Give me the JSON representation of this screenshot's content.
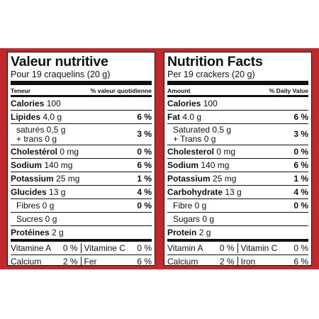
{
  "french": {
    "title": "Valeur nutritive",
    "serving": "Pour 19 craquelins (20 g)",
    "head_left": "Teneur",
    "head_right": "% valeur quotidienne",
    "rows": [
      {
        "name": "Calories",
        "amount": "100",
        "dv": ""
      },
      {
        "name": "Lipides",
        "amount": "4,0 g",
        "dv": "6 %"
      },
      {
        "name": "saturés 0,5 g",
        "name2": "+ trans 0 g",
        "dv": "3 %"
      },
      {
        "name": "Cholestérol",
        "amount": "0 mg",
        "dv": "0 %"
      },
      {
        "name": "Sodium",
        "amount": "140 mg",
        "dv": "6 %"
      },
      {
        "name": "Potassium",
        "amount": "25 mg",
        "dv": "1 %"
      },
      {
        "name": "Glucides",
        "amount": "13 g",
        "dv": "4 %"
      },
      {
        "name": "Fibres 0 g",
        "dv": "0 %"
      },
      {
        "name": "Sucres 0 g",
        "dv": ""
      },
      {
        "name": "Protéines",
        "amount": "2 g",
        "dv": ""
      }
    ],
    "vitamins": [
      {
        "a_name": "Vitamine A",
        "a_dv": "0 %",
        "b_name": "Vitamine C",
        "b_dv": "0 %"
      },
      {
        "a_name": "Calcium",
        "a_dv": "2 %",
        "b_name": "Fer",
        "b_dv": "6 %"
      }
    ]
  },
  "english": {
    "title": "Nutrition Facts",
    "serving": "Per 19 crackers (20 g)",
    "head_left": "Amount",
    "head_right": "% Daily Value",
    "rows": [
      {
        "name": "Calories",
        "amount": "100",
        "dv": ""
      },
      {
        "name": "Fat",
        "amount": "4.0 g",
        "dv": "6 %"
      },
      {
        "name": "Saturated 0.5 g",
        "name2": "+ Trans 0 g",
        "dv": "3 %"
      },
      {
        "name": "Cholesterol",
        "amount": "0 mg",
        "dv": "0 %"
      },
      {
        "name": "Sodium",
        "amount": "140 mg",
        "dv": "6 %"
      },
      {
        "name": "Potassium",
        "amount": "25 mg",
        "dv": "1 %"
      },
      {
        "name": "Carbohydrate",
        "amount": "13 g",
        "dv": "4 %"
      },
      {
        "name": "Fibre 0 g",
        "dv": "0 %"
      },
      {
        "name": "Sugars 0 g",
        "dv": ""
      },
      {
        "name": "Protein",
        "amount": "2 g",
        "dv": ""
      }
    ],
    "vitamins": [
      {
        "a_name": "Vitamin A",
        "a_dv": "0 %",
        "b_name": "Vitamin C",
        "b_dv": "0 %"
      },
      {
        "a_name": "Calcium",
        "a_dv": "2 %",
        "b_name": "Iron",
        "b_dv": "6 %"
      }
    ]
  },
  "colors": {
    "band": "#c0282b",
    "text": "#111111",
    "panel": "#ffffff"
  }
}
